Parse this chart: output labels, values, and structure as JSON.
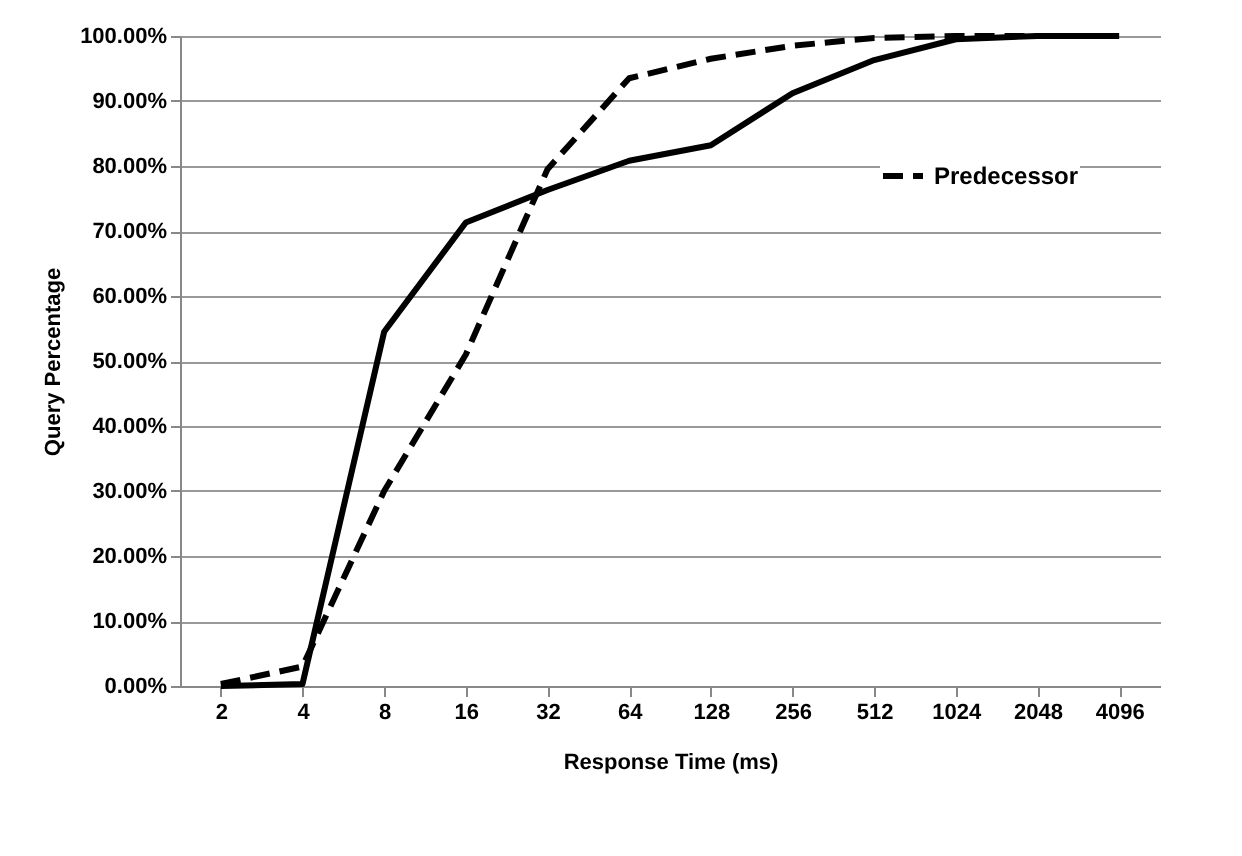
{
  "chart_data": {
    "type": "line",
    "xlabel": "Response Time (ms)",
    "ylabel": "Query Percentage",
    "categories": [
      "2",
      "4",
      "8",
      "16",
      "32",
      "64",
      "128",
      "256",
      "512",
      "1024",
      "2048",
      "4096"
    ],
    "series": [
      {
        "color": "#000000",
        "line_style": "solid",
        "values": [
          0,
          0.3,
          54.5,
          71.3,
          76.3,
          80.8,
          83.2,
          91.2,
          96.3,
          99.5,
          100,
          100
        ]
      },
      {
        "name": "Predecessor",
        "color": "#000000",
        "line_style": "dashed",
        "values": [
          0.3,
          3,
          30,
          51,
          79.5,
          93.5,
          96.5,
          98.5,
          99.7,
          100,
          100,
          100
        ]
      }
    ],
    "ylim": [
      0,
      100
    ],
    "yticks": [
      {
        "value": 0,
        "label": "0.00%"
      },
      {
        "value": 10,
        "label": "10.00%"
      },
      {
        "value": 20,
        "label": "20.00%"
      },
      {
        "value": 30,
        "label": "30.00%"
      },
      {
        "value": 40,
        "label": "40.00%"
      },
      {
        "value": 50,
        "label": "50.00%"
      },
      {
        "value": 60,
        "label": "60.00%"
      },
      {
        "value": 70,
        "label": "70.00%"
      },
      {
        "value": 80,
        "label": "80.00%"
      },
      {
        "value": 90,
        "label": "90.00%"
      },
      {
        "value": 100,
        "label": "100.00%"
      }
    ],
    "grid": "y",
    "legend": "right",
    "marker": "none"
  }
}
